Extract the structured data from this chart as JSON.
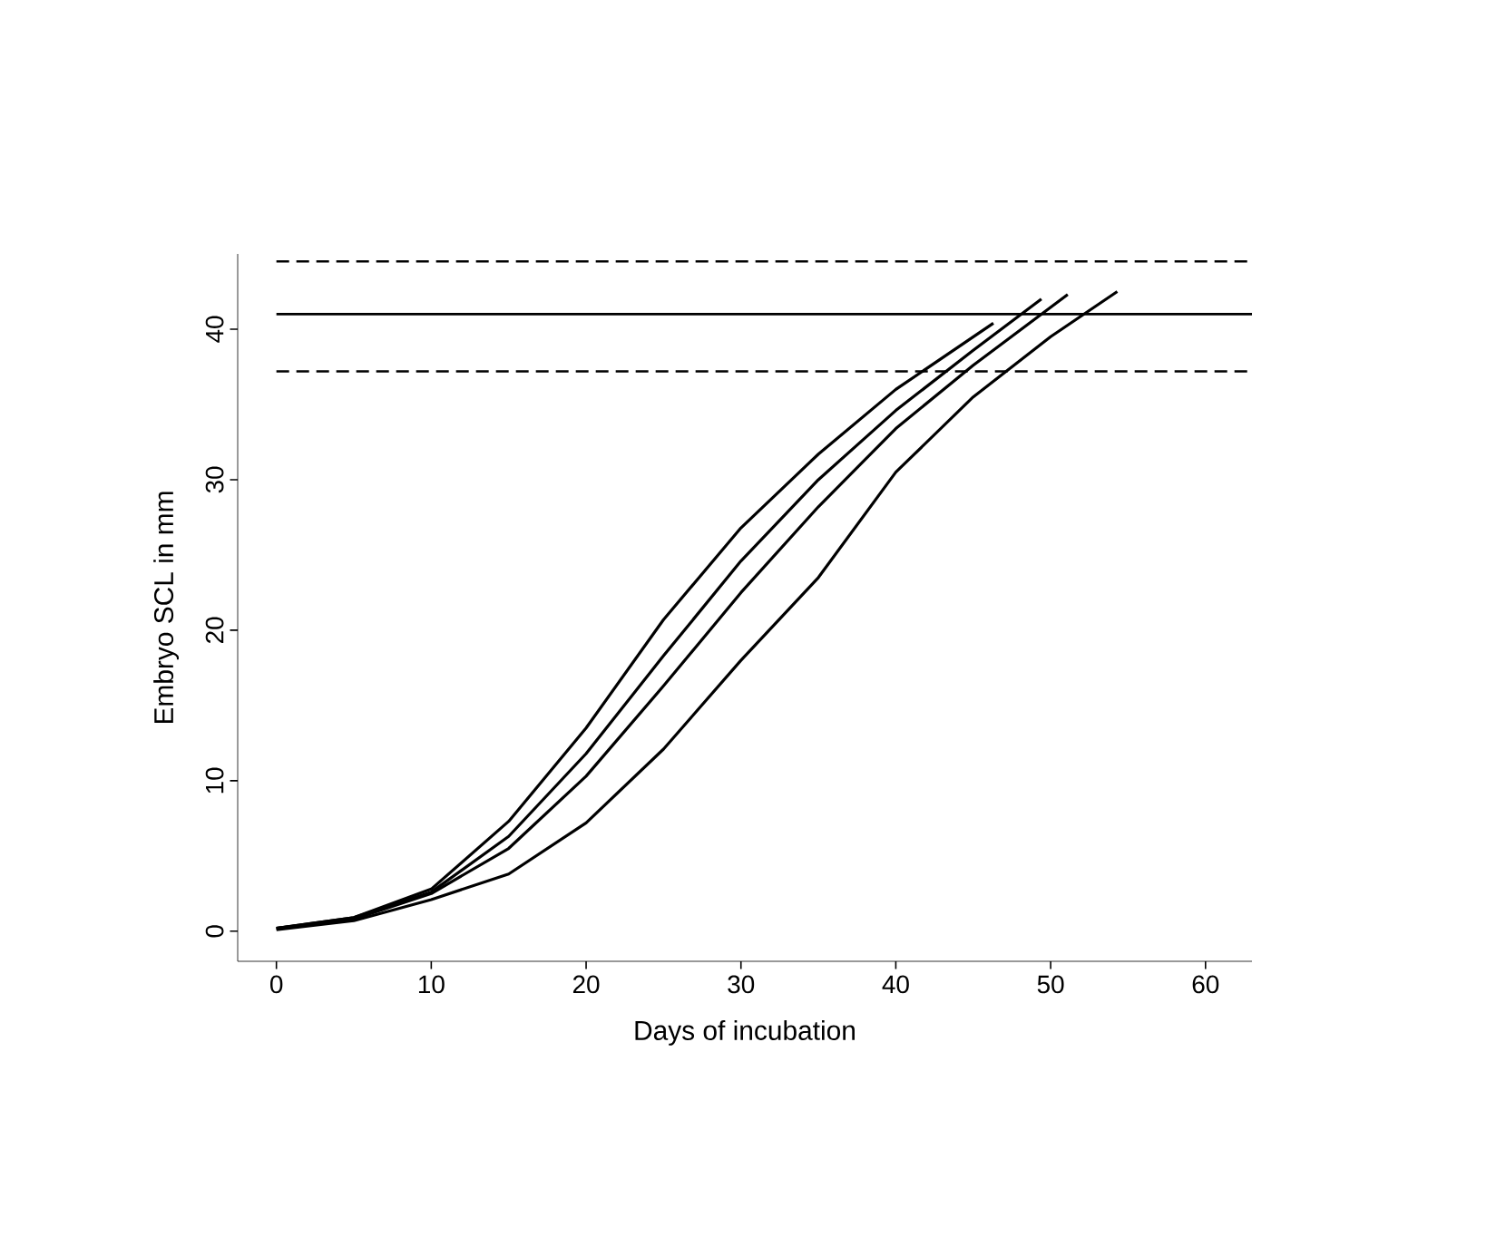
{
  "chart_data": {
    "type": "line",
    "xlabel": "Days of incubation",
    "ylabel": "Embryo SCL in mm",
    "xlim": [
      -2.5,
      63
    ],
    "ylim": [
      -2,
      45
    ],
    "xticks": [
      0,
      10,
      20,
      30,
      40,
      50,
      60
    ],
    "yticks": [
      0,
      10,
      20,
      30,
      40
    ],
    "series": [
      {
        "color": "#000000",
        "x": [
          0,
          5,
          10,
          15,
          20,
          25,
          30,
          35,
          40,
          46.3
        ],
        "values": [
          0.2,
          0.9,
          2.8,
          7.3,
          13.5,
          20.7,
          26.8,
          31.7,
          36.0,
          40.4
        ]
      },
      {
        "color": "#000000",
        "x": [
          0,
          5,
          10,
          15,
          20,
          25,
          30,
          35,
          40,
          45,
          49.4
        ],
        "values": [
          0.2,
          0.9,
          2.6,
          6.3,
          11.8,
          18.3,
          24.6,
          30.0,
          34.6,
          38.6,
          42.0
        ]
      },
      {
        "color": "#000000",
        "x": [
          0,
          5,
          10,
          15,
          20,
          25,
          30,
          35,
          40,
          45,
          51.1
        ],
        "values": [
          0.2,
          0.8,
          2.5,
          5.5,
          10.3,
          16.3,
          22.5,
          28.2,
          33.4,
          37.6,
          42.3
        ]
      },
      {
        "color": "#000000",
        "x": [
          0,
          5,
          10,
          15,
          20,
          25,
          30,
          35,
          40,
          45,
          50,
          54.3
        ],
        "values": [
          0.1,
          0.7,
          2.1,
          3.8,
          7.2,
          12.1,
          18.0,
          23.5,
          30.5,
          35.5,
          39.5,
          42.5
        ]
      }
    ],
    "ref_lines": [
      {
        "axis": "y",
        "value": 44.5,
        "line_style": "dashed",
        "color": "#000000"
      },
      {
        "axis": "y",
        "value": 41,
        "line_style": "solid",
        "color": "#000000"
      },
      {
        "axis": "y",
        "value": 37.2,
        "line_style": "dashed",
        "color": "#000000"
      }
    ],
    "grid": false
  }
}
